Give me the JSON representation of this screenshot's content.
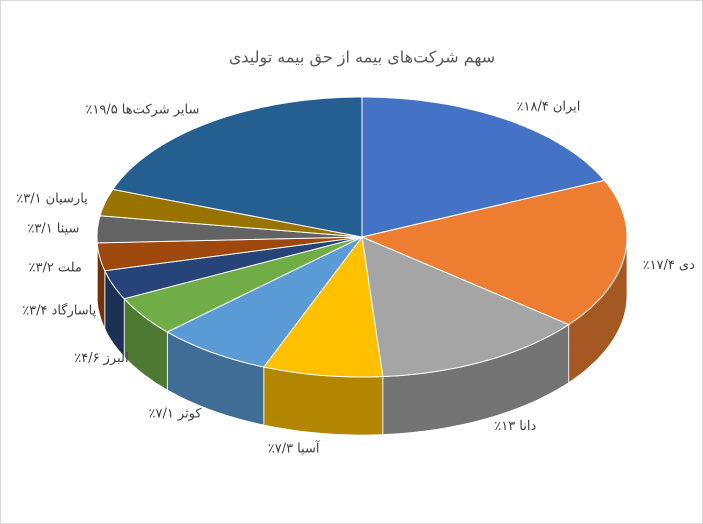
{
  "chart_data": {
    "type": "pie3d",
    "title": "سهم شرکت‌های بیمه از حق بیمه تولیدی",
    "categories": [
      "ایران",
      "دی",
      "دانا",
      "آسیا",
      "کوثر",
      "البرز",
      "پاسارگاد",
      "ملت",
      "سینا",
      "پارسیان",
      "سایر شرکت‌ها"
    ],
    "values": [
      18.4,
      17.4,
      13,
      7.3,
      7.1,
      4.6,
      3.4,
      3.2,
      3.1,
      3.1,
      19.5
    ],
    "value_labels": [
      "۱۸/۴٪",
      "۱۷/۴٪",
      "۱۳٪",
      "۷/۳٪",
      "۷/۱٪",
      "۴/۶٪",
      "۳/۴٪",
      "۳/۲٪",
      "۳/۱٪",
      "۳/۱٪",
      "۱۹/۵٪"
    ],
    "colors": [
      "#4472c4",
      "#ed7d31",
      "#a5a5a5",
      "#ffc000",
      "#5b9bd5",
      "#70ad47",
      "#264478",
      "#9e480e",
      "#636363",
      "#997300",
      "#255e91"
    ]
  }
}
